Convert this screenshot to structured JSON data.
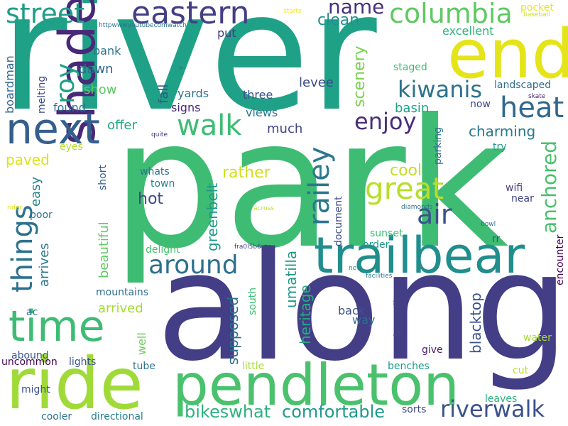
{
  "colors": {
    "background": "#ffffff",
    "palette": [
      "#440154",
      "#46327e",
      "#365c8d",
      "#277f8e",
      "#1fa187",
      "#4ac16d",
      "#a0da39",
      "#fde725"
    ]
  },
  "words": [
    {
      "id": "river",
      "text": "river",
      "color": "#1fa187"
    },
    {
      "id": "park",
      "text": "park",
      "color": "#3fbc73"
    },
    {
      "id": "along",
      "text": "along",
      "color": "#433e85"
    },
    {
      "id": "pendleton",
      "text": "pendleton",
      "color": "#4ac16d"
    },
    {
      "id": "ride",
      "text": "ride",
      "color": "#a0da39"
    },
    {
      "id": "end",
      "text": "end",
      "color": "#e4e419"
    },
    {
      "id": "trailbear",
      "text": "trailbear",
      "color": "#218e8d"
    },
    {
      "id": "shade",
      "text": "shade",
      "color": "#482878"
    },
    {
      "id": "next",
      "text": "next",
      "color": "#355f8d"
    },
    {
      "id": "time",
      "text": "time",
      "color": "#3dbc74"
    },
    {
      "id": "eastern",
      "text": "eastern",
      "color": "#433e85"
    },
    {
      "id": "columbia",
      "text": "columbia",
      "color": "#5ec962"
    },
    {
      "id": "street",
      "text": "street",
      "color": "#1f9e89"
    },
    {
      "id": "heat",
      "text": "heat",
      "color": "#31688e"
    },
    {
      "id": "great",
      "text": "great",
      "color": "#b8de29"
    },
    {
      "id": "railey",
      "text": "railey",
      "color": "#2a788e"
    },
    {
      "id": "walk",
      "text": "walk",
      "color": "#3fbc73"
    },
    {
      "id": "things",
      "text": "things",
      "color": "#2c728e"
    },
    {
      "id": "around",
      "text": "around",
      "color": "#2d708e"
    },
    {
      "id": "riverwalk",
      "text": "riverwalk",
      "color": "#3b528b"
    },
    {
      "id": "air",
      "text": "air",
      "color": "#3b528b"
    },
    {
      "id": "kiwanis",
      "text": "kiwanis",
      "color": "#2c728e"
    },
    {
      "id": "roy",
      "text": "roy",
      "color": "#1fa187"
    },
    {
      "id": "enjoy",
      "text": "enjoy",
      "color": "#472d7b"
    },
    {
      "id": "anchored",
      "text": "anchored",
      "color": "#4ac16d"
    },
    {
      "id": "name",
      "text": "name",
      "color": "#46327e"
    },
    {
      "id": "bikeswhat",
      "text": "bikeswhat",
      "color": "#2db27d"
    },
    {
      "id": "comfortable",
      "text": "comfortable",
      "color": "#1e9b8a"
    },
    {
      "id": "clean",
      "text": "clean",
      "color": "#218f8d"
    },
    {
      "id": "scenery",
      "text": "scenery",
      "color": "#7ad151"
    },
    {
      "id": "rather",
      "text": "rather",
      "color": "#d0e11c"
    },
    {
      "id": "cool",
      "text": "cool",
      "color": "#c2df23"
    },
    {
      "id": "charming",
      "text": "charming",
      "color": "#2a788e"
    },
    {
      "id": "umatilla",
      "text": "umatilla",
      "color": "#1f988b"
    },
    {
      "id": "supposed",
      "text": "supposed",
      "color": "#2d708e"
    },
    {
      "id": "heritage",
      "text": "heritage",
      "color": "#27ad81"
    },
    {
      "id": "blacktop",
      "text": "blacktop",
      "color": "#3b528b"
    },
    {
      "id": "greenbelt",
      "text": "greenbelt",
      "color": "#1f988b"
    },
    {
      "id": "beautiful",
      "text": "beautiful",
      "color": "#5ec962"
    },
    {
      "id": "hot",
      "text": "hot",
      "color": "#3e4989"
    },
    {
      "id": "arrived",
      "text": "arrived",
      "color": "#a5db36"
    },
    {
      "id": "arrives",
      "text": "arrives",
      "color": "#2a768e"
    },
    {
      "id": "easy",
      "text": "easy",
      "color": "#26828e"
    },
    {
      "id": "paved",
      "text": "paved",
      "color": "#dde318"
    },
    {
      "id": "boardman",
      "text": "boardman",
      "color": "#31688e"
    },
    {
      "id": "show",
      "text": "show",
      "color": "#5ec962"
    },
    {
      "id": "dawn",
      "text": "dawn",
      "color": "#31688e"
    },
    {
      "id": "bank",
      "text": "bank",
      "color": "#2c728e"
    },
    {
      "id": "fall",
      "text": "fall",
      "color": "#3b528b"
    },
    {
      "id": "offer",
      "text": "offer",
      "color": "#22a884"
    },
    {
      "id": "much",
      "text": "much",
      "color": "#414487"
    },
    {
      "id": "views",
      "text": "views",
      "color": "#2a788e"
    },
    {
      "id": "levee",
      "text": "levee",
      "color": "#3e4a89"
    },
    {
      "id": "basin",
      "text": "basin",
      "color": "#1fa187"
    },
    {
      "id": "excellent",
      "text": "excellent",
      "color": "#2db27d"
    },
    {
      "id": "pocket",
      "text": "pocket",
      "color": "#e8e419"
    },
    {
      "id": "baseball",
      "text": "baseball",
      "color": "#cae11f"
    },
    {
      "id": "starts",
      "text": "starts",
      "color": "#f1e51d"
    },
    {
      "id": "put",
      "text": "put",
      "color": "#443a83"
    },
    {
      "id": "httpwww",
      "text": "httpwwwyoutubecomwatch",
      "color": "#2c728e"
    },
    {
      "id": "staged",
      "text": "staged",
      "color": "#3dbc74"
    },
    {
      "id": "landscaped",
      "text": "landscaped",
      "color": "#2e6e8e"
    },
    {
      "id": "now",
      "text": "now",
      "color": "#3e4a89"
    },
    {
      "id": "skate",
      "text": "skate",
      "color": "#482475"
    },
    {
      "id": "three",
      "text": "three",
      "color": "#3b528b"
    },
    {
      "id": "yards",
      "text": "yards",
      "color": "#2c728e"
    },
    {
      "id": "signs",
      "text": "signs",
      "color": "#482878"
    },
    {
      "id": "found",
      "text": "found",
      "color": "#2d708e"
    },
    {
      "id": "melting",
      "text": "melting",
      "color": "#3e4a89"
    },
    {
      "id": "eyes",
      "text": "eyes",
      "color": "#b5de2b"
    },
    {
      "id": "quite",
      "text": "quite",
      "color": "#46307e"
    },
    {
      "id": "short",
      "text": "short",
      "color": "#365c8d"
    },
    {
      "id": "whats",
      "text": "whats",
      "color": "#2c728e"
    },
    {
      "id": "town",
      "text": "town",
      "color": "#26828e"
    },
    {
      "id": "wifi",
      "text": "wifi",
      "color": "#433e85"
    },
    {
      "id": "near",
      "text": "near",
      "color": "#414487"
    },
    {
      "id": "try",
      "text": "try",
      "color": "#1f988b"
    },
    {
      "id": "parking",
      "text": "parking",
      "color": "#2c728e"
    },
    {
      "id": "rider",
      "text": "rider",
      "color": "#d8e219"
    },
    {
      "id": "poor",
      "text": "poor",
      "color": "#2c728e"
    },
    {
      "id": "document",
      "text": "document",
      "color": "#3e4989"
    },
    {
      "id": "across",
      "text": "across",
      "color": "#bddf26"
    },
    {
      "id": "diamonds",
      "text": "diamonds",
      "color": "#2d708e"
    },
    {
      "id": "bowl",
      "text": "bowl",
      "color": "#2c728e"
    },
    {
      "id": "encounter",
      "text": "encounter",
      "color": "#440154"
    },
    {
      "id": "sunset",
      "text": "sunset",
      "color": "#3dbc74"
    },
    {
      "id": "order",
      "text": "order",
      "color": "#1f988b"
    },
    {
      "id": "rr",
      "text": "rr",
      "color": "#3b528b"
    },
    {
      "id": "delight",
      "text": "delight",
      "color": "#4ac16d"
    },
    {
      "id": "fra",
      "text": "fra0l5b6ytg",
      "color": "#414487"
    },
    {
      "id": "mountains",
      "text": "mountains",
      "color": "#2d708e"
    },
    {
      "id": "south",
      "text": "south",
      "color": "#3dbc74"
    },
    {
      "id": "ac",
      "text": "ac",
      "color": "#2a788e"
    },
    {
      "id": "new",
      "text": "new",
      "color": "#277f8e"
    },
    {
      "id": "facilities",
      "text": "facilities",
      "color": "#2a788e"
    },
    {
      "id": "back",
      "text": "back",
      "color": "#3b528b"
    },
    {
      "id": "way",
      "text": "way",
      "color": "#2c728e"
    },
    {
      "id": "depending",
      "text": "depending",
      "color": "#414487"
    },
    {
      "id": "well",
      "text": "well",
      "color": "#6ccd5a"
    },
    {
      "id": "water",
      "text": "water",
      "color": "#a5db36"
    },
    {
      "id": "abound",
      "text": "abound",
      "color": "#3b528b"
    },
    {
      "id": "give",
      "text": "give",
      "color": "#481b6d"
    },
    {
      "id": "uncommon",
      "text": "uncommon",
      "color": "#440154"
    },
    {
      "id": "lights",
      "text": "lights",
      "color": "#3b528b"
    },
    {
      "id": "tube",
      "text": "tube",
      "color": "#2c728e"
    },
    {
      "id": "little",
      "text": "little",
      "color": "#a5db36"
    },
    {
      "id": "benches",
      "text": "benches",
      "color": "#1f988b"
    },
    {
      "id": "cut",
      "text": "cut",
      "color": "#b5de2b"
    },
    {
      "id": "might",
      "text": "might",
      "color": "#3b528b"
    },
    {
      "id": "leaves",
      "text": "leaves",
      "color": "#2db27d"
    },
    {
      "id": "cooler",
      "text": "cooler",
      "color": "#2c728e"
    },
    {
      "id": "directional",
      "text": "directional",
      "color": "#277f8e"
    },
    {
      "id": "sorts",
      "text": "sorts",
      "color": "#3e4a89"
    },
    {
      "id": "gt",
      "text": ">",
      "color": "#2c728e"
    }
  ]
}
